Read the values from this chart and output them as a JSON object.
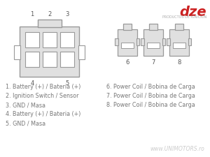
{
  "bg_color": "#ffffff",
  "dze_logo_text": "dze",
  "dze_sub_text": "PRODUCTOS DE IGNICION",
  "dze_color": "#cc2222",
  "watermark": "www.UNIMOTORS.ro",
  "legends_left": [
    "1. Battery (+) / Bateria (+)",
    "2. Ignition Switch / Sensor",
    "3. GND / Masa",
    "4. Battery (+) / Bateria (+)",
    "5. GND / Masa"
  ],
  "legends_right": [
    "6. Power Coil / Bobina de Carga",
    "7. Power Coil / Bobina de Carga",
    "8. Power Coil / Bobina de Carga"
  ],
  "legend_color": "#777777",
  "connector_color": "#e0e0e0",
  "connector_edge_color": "#999999",
  "pin_color": "#ffffff",
  "pin_edge_color": "#999999"
}
